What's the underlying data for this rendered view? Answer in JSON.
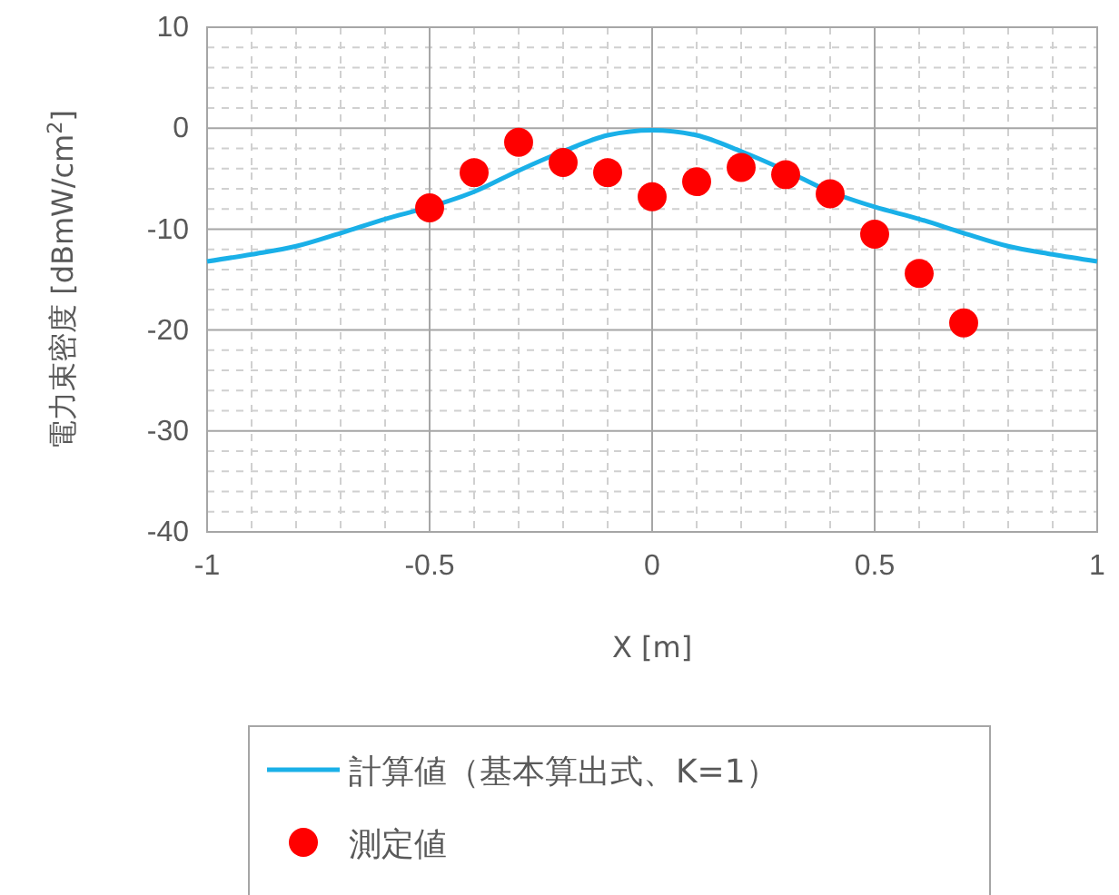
{
  "chart_data": {
    "type": "line",
    "xlabel": "X [m]",
    "ylabel": "電力束密度 [dBmW/cm$^{2}$]",
    "xlim": [
      -1,
      1
    ],
    "xticks": [
      -1,
      -0.5,
      0,
      0.5,
      1
    ],
    "ylim": [
      -40,
      10
    ],
    "yticks": [
      -40,
      -30,
      -20,
      -10,
      0,
      10
    ],
    "grid": true,
    "legend": "bottom",
    "series": [
      {
        "name": "計算値（基本算出式、K=1）",
        "color": "#1ab0e8",
        "marker": "none",
        "line_style": "solid",
        "x": [
          -1,
          -0.9,
          -0.8,
          -0.7,
          -0.6,
          -0.5,
          -0.4,
          -0.3,
          -0.2,
          -0.1,
          0,
          0.1,
          0.2,
          0.3,
          0.4,
          0.5,
          0.6,
          0.7,
          0.8,
          0.9,
          1
        ],
        "values": [
          -13.2,
          -12.5,
          -11.7,
          -10.4,
          -9.0,
          -7.8,
          -6.3,
          -4.2,
          -2.3,
          -0.7,
          -0.2,
          -0.7,
          -2.3,
          -4.2,
          -6.3,
          -7.8,
          -9.0,
          -10.4,
          -11.7,
          -12.5,
          -13.2
        ]
      },
      {
        "name": "測定値",
        "type": "scatter",
        "color": "#ff0000",
        "marker": "circle",
        "x": [
          -0.5,
          -0.4,
          -0.3,
          -0.2,
          -0.1,
          0,
          0.1,
          0.2,
          0.3,
          0.4,
          0.5,
          0.6,
          0.7
        ],
        "values": [
          -7.9,
          -4.4,
          -1.4,
          -3.4,
          -4.4,
          -6.8,
          -5.3,
          -3.9,
          -4.6,
          -6.5,
          -10.5,
          -14.4,
          -19.3
        ]
      }
    ]
  }
}
